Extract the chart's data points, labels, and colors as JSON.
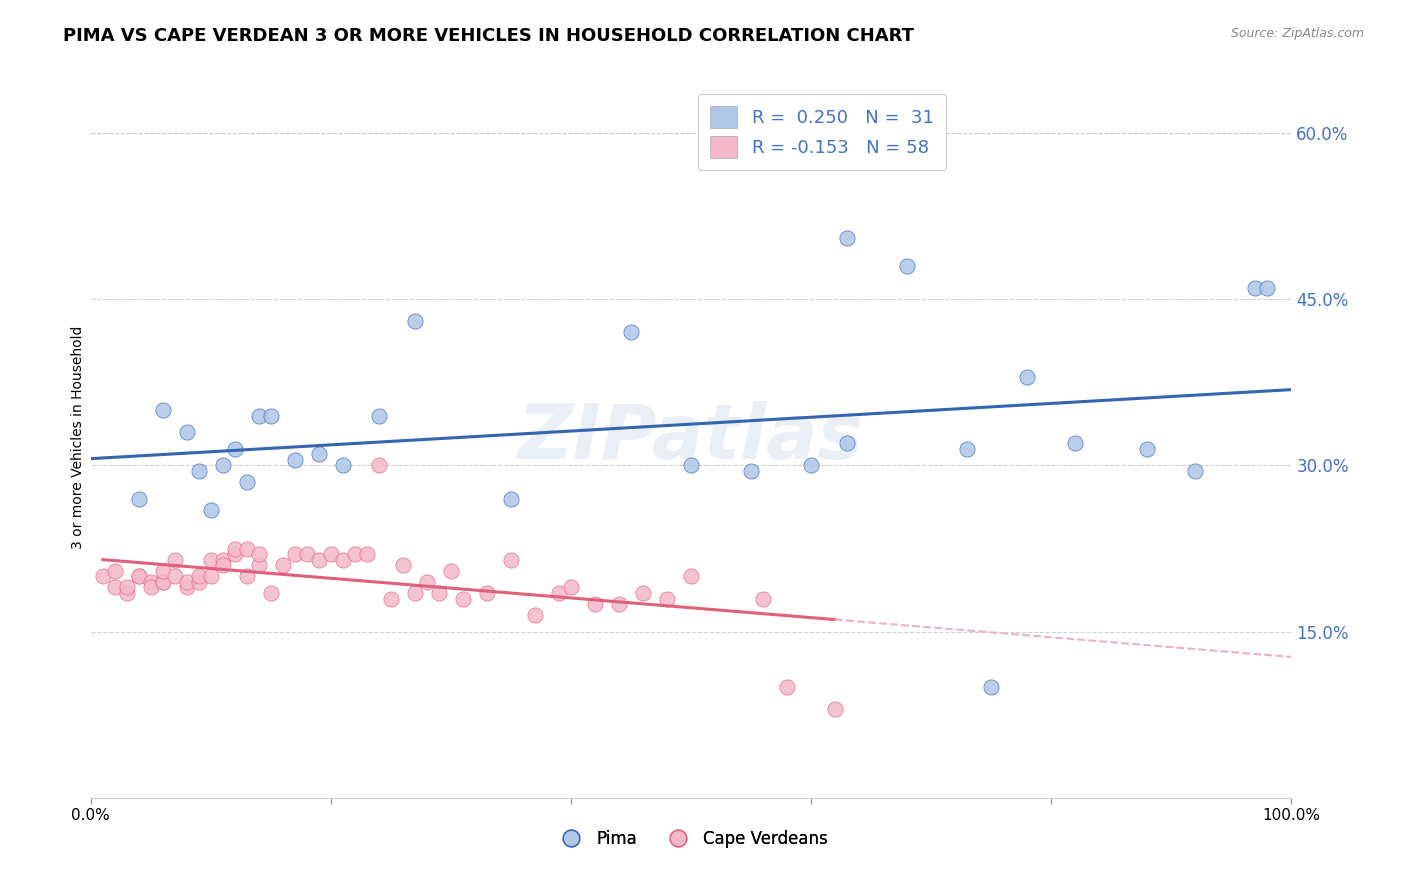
{
  "title": "PIMA VS CAPE VERDEAN 3 OR MORE VEHICLES IN HOUSEHOLD CORRELATION CHART",
  "source": "Source: ZipAtlas.com",
  "ylabel": "3 or more Vehicles in Household",
  "watermark": "ZIPatlas",
  "legend_blue_label": "R =  0.250   N =  31",
  "legend_pink_label": "R = -0.153   N = 58",
  "pima_color": "#aec6e8",
  "cape_color": "#f4b8ca",
  "pima_line_color": "#3565b0",
  "cape_line_color": "#e0607a",
  "cape_line_dash_color": "#f0b0c0",
  "xlim": [
    0.0,
    1.0
  ],
  "ylim": [
    0.0,
    0.65
  ],
  "xticks": [
    0.0,
    0.2,
    0.4,
    0.6,
    0.8,
    1.0
  ],
  "xtick_labels": [
    "0.0%",
    "",
    "",
    "",
    "",
    "100.0%"
  ],
  "yticks": [
    0.15,
    0.3,
    0.45,
    0.6
  ],
  "ytick_labels": [
    "15.0%",
    "30.0%",
    "45.0%",
    "60.0%"
  ],
  "pima_x": [
    0.04,
    0.06,
    0.08,
    0.09,
    0.1,
    0.11,
    0.12,
    0.13,
    0.14,
    0.15,
    0.17,
    0.19,
    0.21,
    0.24,
    0.27,
    0.35,
    0.45,
    0.5,
    0.55,
    0.6,
    0.63,
    0.68,
    0.73,
    0.78,
    0.82,
    0.88,
    0.92,
    0.97,
    0.63,
    0.75,
    0.98
  ],
  "pima_y": [
    0.27,
    0.35,
    0.33,
    0.295,
    0.26,
    0.3,
    0.315,
    0.285,
    0.345,
    0.345,
    0.305,
    0.31,
    0.3,
    0.345,
    0.43,
    0.27,
    0.42,
    0.3,
    0.295,
    0.3,
    0.505,
    0.48,
    0.315,
    0.38,
    0.32,
    0.315,
    0.295,
    0.46,
    0.32,
    0.1,
    0.46
  ],
  "cape_x": [
    0.01,
    0.02,
    0.02,
    0.03,
    0.03,
    0.04,
    0.04,
    0.05,
    0.05,
    0.06,
    0.06,
    0.06,
    0.07,
    0.07,
    0.08,
    0.08,
    0.09,
    0.09,
    0.1,
    0.1,
    0.11,
    0.11,
    0.12,
    0.12,
    0.13,
    0.13,
    0.14,
    0.14,
    0.15,
    0.16,
    0.17,
    0.18,
    0.19,
    0.2,
    0.21,
    0.22,
    0.23,
    0.24,
    0.25,
    0.26,
    0.27,
    0.28,
    0.29,
    0.3,
    0.31,
    0.33,
    0.35,
    0.37,
    0.39,
    0.4,
    0.42,
    0.44,
    0.46,
    0.48,
    0.5,
    0.56,
    0.58,
    0.62
  ],
  "cape_y": [
    0.2,
    0.19,
    0.205,
    0.185,
    0.19,
    0.2,
    0.2,
    0.195,
    0.19,
    0.195,
    0.195,
    0.205,
    0.2,
    0.215,
    0.19,
    0.195,
    0.195,
    0.2,
    0.2,
    0.215,
    0.215,
    0.21,
    0.22,
    0.225,
    0.2,
    0.225,
    0.21,
    0.22,
    0.185,
    0.21,
    0.22,
    0.22,
    0.215,
    0.22,
    0.215,
    0.22,
    0.22,
    0.3,
    0.18,
    0.21,
    0.185,
    0.195,
    0.185,
    0.205,
    0.18,
    0.185,
    0.215,
    0.165,
    0.185,
    0.19,
    0.175,
    0.175,
    0.185,
    0.18,
    0.2,
    0.18,
    0.1,
    0.08
  ],
  "bottom_legend": [
    "Pima",
    "Cape Verdeans"
  ],
  "title_fontsize": 13,
  "axis_fontsize": 10,
  "tick_fontsize": 11
}
